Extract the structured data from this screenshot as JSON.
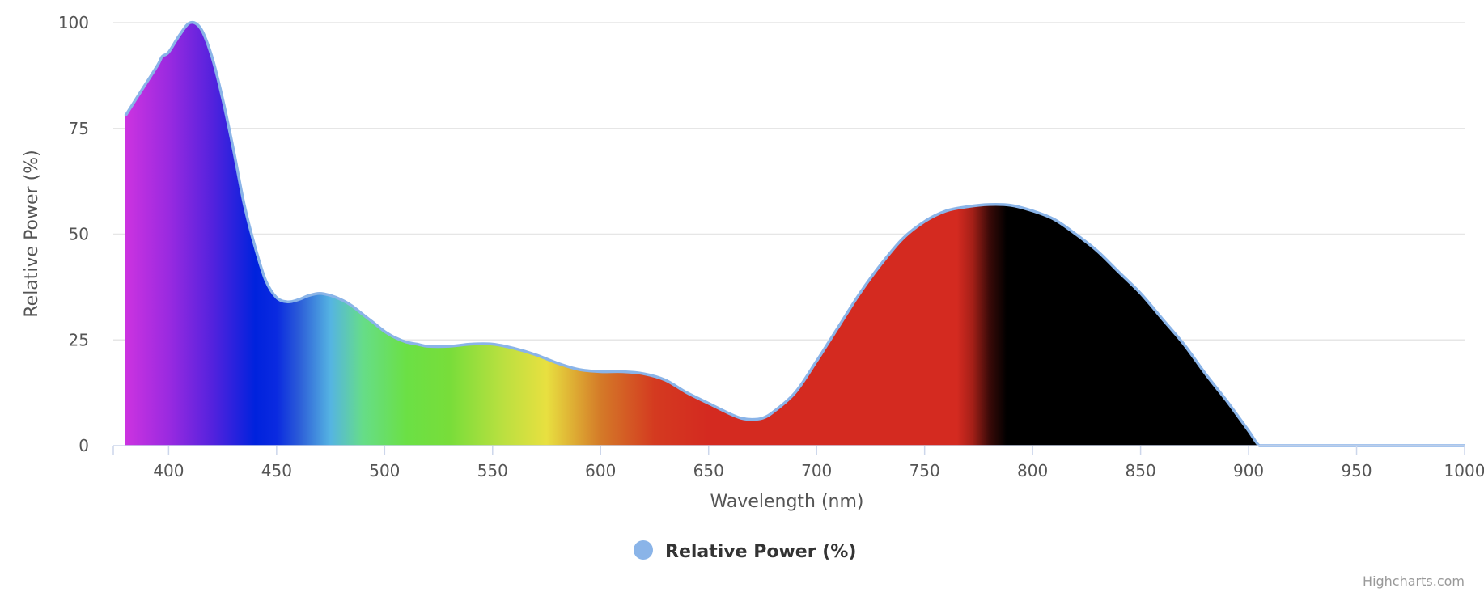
{
  "chart_data": {
    "type": "area",
    "title": "",
    "xlabel": "Wavelength (nm)",
    "ylabel": "Relative Power (%)",
    "xlim": [
      380,
      1000
    ],
    "ylim": [
      0,
      100
    ],
    "x_ticks": [
      400,
      450,
      500,
      550,
      600,
      650,
      700,
      750,
      800,
      850,
      900,
      950,
      1000
    ],
    "y_ticks": [
      0,
      25,
      50,
      75,
      100
    ],
    "grid": true,
    "legend": "bottom-center",
    "credits": "Highcharts.com",
    "line_color": "#8ab4e8",
    "series": [
      {
        "name": "Relative Power (%)",
        "x": [
          380,
          385,
          390,
          395,
          397,
          400,
          405,
          410,
          415,
          420,
          425,
          430,
          435,
          440,
          445,
          450,
          455,
          460,
          465,
          470,
          475,
          480,
          485,
          490,
          495,
          500,
          505,
          510,
          515,
          520,
          530,
          540,
          550,
          560,
          570,
          580,
          590,
          600,
          610,
          620,
          630,
          640,
          650,
          660,
          665,
          670,
          675,
          680,
          690,
          700,
          710,
          720,
          730,
          740,
          750,
          760,
          770,
          780,
          790,
          800,
          810,
          820,
          830,
          840,
          850,
          860,
          870,
          880,
          890,
          900,
          905,
          910,
          950,
          1000
        ],
        "values": [
          78,
          82,
          86,
          90,
          92,
          93,
          97,
          100,
          98.5,
          92,
          82,
          70,
          57,
          47,
          39,
          35,
          34,
          34.5,
          35.5,
          36,
          35.5,
          34.5,
          33,
          31,
          29,
          27,
          25.5,
          24.5,
          24,
          23.5,
          23.5,
          24,
          24,
          23,
          21.5,
          19.5,
          18,
          17.5,
          17.5,
          17,
          15.5,
          12.5,
          10,
          7.5,
          6.5,
          6.2,
          6.5,
          8,
          12.5,
          20,
          28,
          36,
          43,
          49,
          53,
          55.5,
          56.5,
          57,
          56.8,
          55.5,
          53.5,
          50,
          46,
          41,
          36,
          30,
          24,
          17,
          10.5,
          3.5,
          0,
          0,
          0,
          0
        ]
      }
    ],
    "spectrum_colors": [
      {
        "nm": 380,
        "color": "#cc33e0"
      },
      {
        "nm": 400,
        "color": "#9a2ae0"
      },
      {
        "nm": 420,
        "color": "#5522dd"
      },
      {
        "nm": 440,
        "color": "#0022dd"
      },
      {
        "nm": 450,
        "color": "#0a2ae0"
      },
      {
        "nm": 460,
        "color": "#2a5ad8"
      },
      {
        "nm": 475,
        "color": "#55b4e2"
      },
      {
        "nm": 490,
        "color": "#66dd88"
      },
      {
        "nm": 510,
        "color": "#6be045"
      },
      {
        "nm": 530,
        "color": "#78dd3a"
      },
      {
        "nm": 555,
        "color": "#bbe040"
      },
      {
        "nm": 575,
        "color": "#e8e040"
      },
      {
        "nm": 600,
        "color": "#d47a28"
      },
      {
        "nm": 625,
        "color": "#d43a20"
      },
      {
        "nm": 650,
        "color": "#d42a20"
      },
      {
        "nm": 765,
        "color": "#d42a20"
      },
      {
        "nm": 772,
        "color": "#a62018"
      },
      {
        "nm": 780,
        "color": "#3a0a08"
      },
      {
        "nm": 788,
        "color": "#000000"
      },
      {
        "nm": 1000,
        "color": "#000000"
      }
    ]
  }
}
